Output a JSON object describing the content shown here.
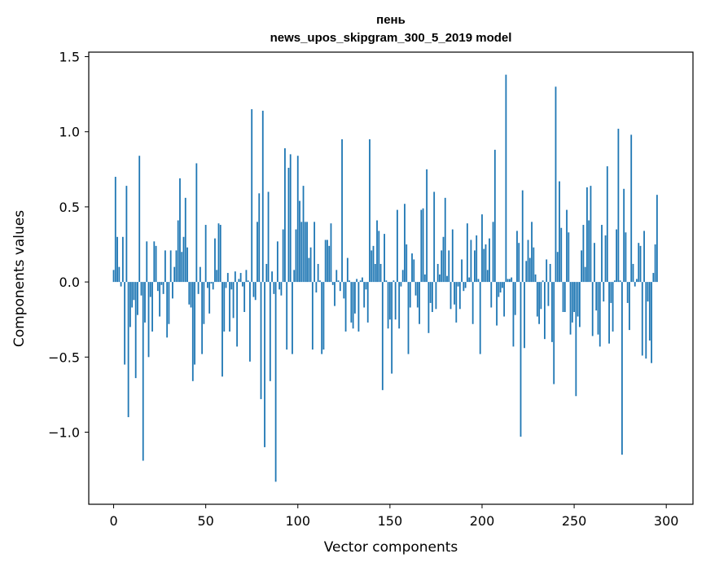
{
  "chart_data": {
    "type": "bar",
    "title_word": "пень",
    "title_model": "news_upos_skipgram_300_5_2019 model",
    "xlabel": "Vector components",
    "ylabel": "Components values",
    "bar_color": "#1f77b4",
    "xlim": [
      -13.5,
      314.5
    ],
    "ylim": [
      -1.48,
      1.53
    ],
    "x_ticks": [
      {
        "value": 0,
        "label": "0"
      },
      {
        "value": 50,
        "label": "50"
      },
      {
        "value": 100,
        "label": "100"
      },
      {
        "value": 150,
        "label": "150"
      },
      {
        "value": 200,
        "label": "200"
      },
      {
        "value": 250,
        "label": "250"
      },
      {
        "value": 300,
        "label": "300"
      }
    ],
    "y_ticks": [
      {
        "value": -1.0,
        "label": "−1.0"
      },
      {
        "value": -0.5,
        "label": "−0.5"
      },
      {
        "value": 0.0,
        "label": "0.0"
      },
      {
        "value": 0.5,
        "label": "0.5"
      },
      {
        "value": 1.0,
        "label": "1.0"
      },
      {
        "value": 1.5,
        "label": "1.5"
      }
    ],
    "values": [
      0.08,
      0.7,
      0.3,
      0.1,
      -0.03,
      0.3,
      -0.55,
      0.64,
      -0.9,
      -0.3,
      -0.17,
      -0.12,
      -0.64,
      -0.22,
      0.84,
      -0.09,
      -1.19,
      -0.27,
      0.27,
      -0.5,
      -0.1,
      -0.33,
      0.27,
      0.24,
      -0.06,
      -0.23,
      -0.02,
      -0.08,
      0.21,
      -0.37,
      -0.28,
      0.21,
      -0.11,
      0.1,
      0.21,
      0.41,
      0.69,
      0.2,
      0.3,
      0.56,
      0.23,
      -0.15,
      -0.17,
      -0.66,
      -0.55,
      0.79,
      -0.08,
      0.1,
      -0.48,
      -0.28,
      0.38,
      -0.04,
      -0.21,
      -0.01,
      -0.05,
      0.29,
      0.08,
      0.39,
      0.38,
      -0.63,
      -0.33,
      -0.04,
      0.06,
      -0.33,
      -0.05,
      -0.24,
      0.07,
      -0.43,
      0.02,
      0.06,
      -0.03,
      -0.2,
      0.08,
      0.01,
      -0.53,
      1.15,
      -0.1,
      -0.12,
      0.4,
      0.59,
      -0.78,
      1.14,
      -1.1,
      0.12,
      0.6,
      -0.66,
      0.07,
      -0.08,
      -1.33,
      0.27,
      -0.05,
      -0.09,
      0.35,
      0.89,
      -0.45,
      0.76,
      0.85,
      -0.48,
      0.08,
      0.35,
      0.84,
      0.54,
      0.4,
      0.64,
      0.4,
      0.4,
      0.16,
      0.23,
      -0.45,
      0.4,
      -0.07,
      0.12,
      0.01,
      -0.48,
      -0.45,
      0.28,
      0.28,
      0.24,
      0.39,
      -0.02,
      -0.16,
      0.08,
      0.01,
      -0.06,
      0.95,
      -0.11,
      -0.33,
      0.16,
      0.01,
      -0.27,
      -0.31,
      -0.21,
      0.02,
      -0.33,
      0.01,
      0.03,
      -0.17,
      -0.05,
      -0.27,
      0.95,
      0.21,
      0.24,
      0.12,
      0.41,
      0.34,
      0.12,
      -0.72,
      0.32,
      0.01,
      -0.31,
      -0.25,
      -0.61,
      0.01,
      -0.25,
      0.48,
      -0.31,
      -0.03,
      0.08,
      0.52,
      0.25,
      -0.48,
      -0.17,
      0.19,
      0.15,
      -0.09,
      -0.17,
      -0.28,
      0.48,
      0.49,
      0.05,
      0.75,
      -0.34,
      -0.14,
      -0.2,
      0.6,
      -0.18,
      0.12,
      0.05,
      0.21,
      0.3,
      0.56,
      0.04,
      0.21,
      -0.18,
      0.35,
      -0.15,
      -0.27,
      -0.03,
      -0.18,
      0.15,
      -0.06,
      -0.04,
      0.39,
      0.03,
      0.28,
      -0.28,
      0.21,
      0.31,
      0.02,
      -0.48,
      0.45,
      0.22,
      0.25,
      0.08,
      0.29,
      -0.17,
      0.4,
      0.88,
      -0.29,
      -0.1,
      -0.07,
      -0.04,
      -0.23,
      1.38,
      0.02,
      0.02,
      0.03,
      -0.43,
      -0.22,
      0.34,
      0.26,
      -1.03,
      0.61,
      -0.44,
      0.14,
      0.28,
      0.16,
      0.4,
      0.23,
      0.05,
      -0.23,
      -0.28,
      -0.18,
      0.01,
      -0.38,
      0.15,
      -0.16,
      0.12,
      -0.4,
      -0.68,
      1.3,
      0.2,
      0.67,
      0.36,
      -0.2,
      -0.2,
      0.48,
      0.33,
      -0.35,
      -0.27,
      -0.2,
      -0.76,
      -0.23,
      -0.3,
      0.21,
      0.38,
      0.1,
      0.63,
      0.41,
      0.64,
      -0.36,
      0.26,
      -0.19,
      -0.35,
      -0.43,
      0.38,
      -0.13,
      0.31,
      0.77,
      -0.41,
      -0.14,
      -0.33,
      0.01,
      0.35,
      1.02,
      0.01,
      -1.15,
      0.62,
      0.33,
      -0.14,
      -0.32,
      0.98,
      0.12,
      -0.03,
      0.02,
      0.26,
      0.24,
      -0.49,
      0.34,
      -0.51,
      -0.13,
      -0.39,
      -0.54,
      0.06,
      0.25,
      0.58
    ]
  }
}
